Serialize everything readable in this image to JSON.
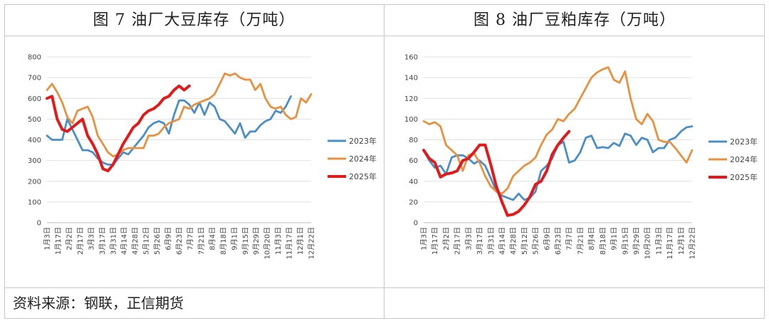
{
  "titles": {
    "left": "图 7  油厂大豆库存（万吨）",
    "right": "图 8  油厂豆粕库存（万吨）"
  },
  "source": "资料来源：钢联，正信期货",
  "colors": {
    "2023年": "#4a8fc6",
    "2024年": "#e8913f",
    "2025年": "#e41a1a"
  },
  "chart_data": [
    {
      "type": "line",
      "title": "图 7  油厂大豆库存（万吨）",
      "xlabel": "",
      "ylabel": "",
      "ylim": [
        0,
        800
      ],
      "yticks": [
        0,
        100,
        200,
        300,
        400,
        500,
        600,
        700,
        800
      ],
      "x_tick_labels": [
        "1月3日",
        "1月17日",
        "2月2日",
        "2月17日",
        "3月3日",
        "3月17日",
        "3月31日",
        "4月14日",
        "4月28日",
        "5月12日",
        "5月26日",
        "6月9日",
        "6月23日",
        "7月7日",
        "7月21日",
        "8月4日",
        "8月18日",
        "9月1日",
        "9月15日",
        "9月29日",
        "10月20日",
        "11月3日",
        "11月17日",
        "12月1日",
        "12月22日"
      ],
      "grid": true,
      "legend_position": "right",
      "series": [
        {
          "name": "2023年",
          "values": [
            420,
            400,
            400,
            400,
            500,
            450,
            400,
            350,
            350,
            340,
            310,
            290,
            280,
            280,
            310,
            340,
            330,
            360,
            390,
            420,
            460,
            480,
            490,
            480,
            430,
            520,
            590,
            590,
            570,
            530,
            580,
            520,
            580,
            560,
            500,
            490,
            460,
            430,
            480,
            410,
            440,
            440,
            470,
            490,
            500,
            540,
            530,
            560,
            610
          ]
        },
        {
          "name": "2024年",
          "values": [
            640,
            670,
            630,
            580,
            510,
            480,
            540,
            550,
            560,
            510,
            420,
            380,
            340,
            320,
            330,
            350,
            360,
            360,
            360,
            360,
            420,
            420,
            430,
            460,
            480,
            490,
            500,
            560,
            550,
            570,
            580,
            590,
            600,
            620,
            670,
            720,
            710,
            720,
            700,
            690,
            690,
            640,
            670,
            600,
            560,
            550,
            560,
            520,
            500,
            510,
            600,
            580,
            620
          ]
        },
        {
          "name": "2025年",
          "values": [
            600,
            610,
            500,
            450,
            440,
            460,
            480,
            500,
            420,
            380,
            330,
            260,
            250,
            280,
            330,
            380,
            420,
            460,
            480,
            520,
            540,
            550,
            570,
            600,
            610,
            640,
            660,
            640,
            660
          ]
        }
      ]
    },
    {
      "type": "line",
      "title": "图 8  油厂豆粕库存（万吨）",
      "xlabel": "",
      "ylabel": "",
      "ylim": [
        0,
        160
      ],
      "yticks": [
        0,
        20,
        40,
        60,
        80,
        100,
        120,
        140,
        160
      ],
      "x_tick_labels": [
        "1月3日",
        "1月17日",
        "2月2日",
        "2月17日",
        "3月3日",
        "3月17日",
        "3月31日",
        "4月14日",
        "4月28日",
        "5月12日",
        "5月26日",
        "6月9日",
        "6月23日",
        "7月7日",
        "7月21日",
        "8月4日",
        "8月18日",
        "9月1日",
        "9月15日",
        "9月29日",
        "10月20日",
        "11月3日",
        "11月17日",
        "12月1日",
        "12月22日"
      ],
      "grid": true,
      "legend_position": "right",
      "series": [
        {
          "name": "2023年",
          "values": [
            70,
            60,
            53,
            55,
            47,
            63,
            65,
            65,
            62,
            57,
            60,
            55,
            43,
            30,
            26,
            24,
            22,
            28,
            22,
            24,
            30,
            50,
            55,
            62,
            75,
            78,
            58,
            60,
            68,
            82,
            84,
            72,
            73,
            72,
            77,
            74,
            86,
            84,
            75,
            82,
            80,
            68,
            72,
            72,
            80,
            82,
            88,
            92,
            93
          ]
        },
        {
          "name": "2024年",
          "values": [
            98,
            95,
            97,
            93,
            75,
            70,
            65,
            50,
            65,
            67,
            58,
            45,
            35,
            30,
            28,
            33,
            45,
            50,
            55,
            58,
            63,
            75,
            85,
            90,
            100,
            98,
            105,
            110,
            120,
            130,
            140,
            145,
            148,
            150,
            138,
            135,
            146,
            120,
            100,
            95,
            105,
            98,
            80,
            78,
            78,
            72,
            65,
            58,
            70
          ]
        },
        {
          "name": "2025年",
          "values": [
            70,
            62,
            58,
            44,
            47,
            48,
            50,
            60,
            62,
            68,
            75,
            75,
            56,
            35,
            20,
            7,
            8,
            11,
            17,
            25,
            37,
            40,
            50,
            66,
            75,
            82,
            88
          ]
        }
      ]
    }
  ]
}
